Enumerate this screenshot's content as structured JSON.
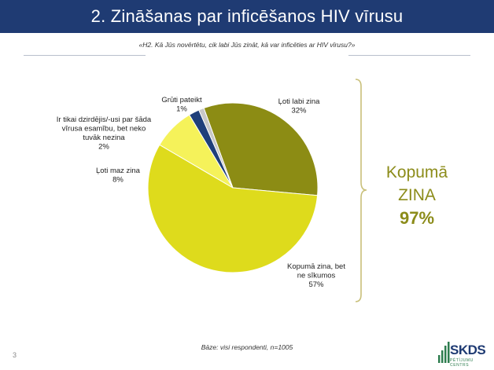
{
  "header": {
    "title": "2. Zināšanas par inficēšanos HIV vīrusu"
  },
  "question": "«H2. Kā Jūs novērtētu, cik labi Jūs zināt, kā var inficēties ar HIV vīrusu?»",
  "summary": {
    "line1": "Kopumā",
    "line2": "ZINA",
    "value": "97%"
  },
  "base_note": "Bāze: visi respondenti, n=1005",
  "page_number": "3",
  "logo": {
    "name": "SKDS",
    "subtitle": "PĒTĪJUMU CENTRS"
  },
  "colors": {
    "title_bar": "#1f3b73",
    "bracket": "#c9c07a",
    "summary_text": "#8c8c1a"
  },
  "chart_data": {
    "type": "pie",
    "title": "",
    "slices": [
      {
        "label_lines": [
          "Ļoti labi zina",
          "32%"
        ],
        "value": 32,
        "color": "#8c8c14"
      },
      {
        "label_lines": [
          "Kopumā zina, bet",
          "ne sīkumos",
          "57%"
        ],
        "value": 57,
        "color": "#dedb1c"
      },
      {
        "label_lines": [
          "Ļoti maz zina",
          "8%"
        ],
        "value": 8,
        "color": "#f5f25a"
      },
      {
        "label_lines": [
          "Ir tikai dzirdējis/-usi par šāda",
          "vīrusa esamību, bet neko",
          "tuvāk nezina",
          "2%"
        ],
        "value": 2,
        "color": "#1f3f7a"
      },
      {
        "label_lines": [
          "Grūti pateikt",
          "1%"
        ],
        "value": 1,
        "color": "#c8c8c8"
      }
    ]
  }
}
